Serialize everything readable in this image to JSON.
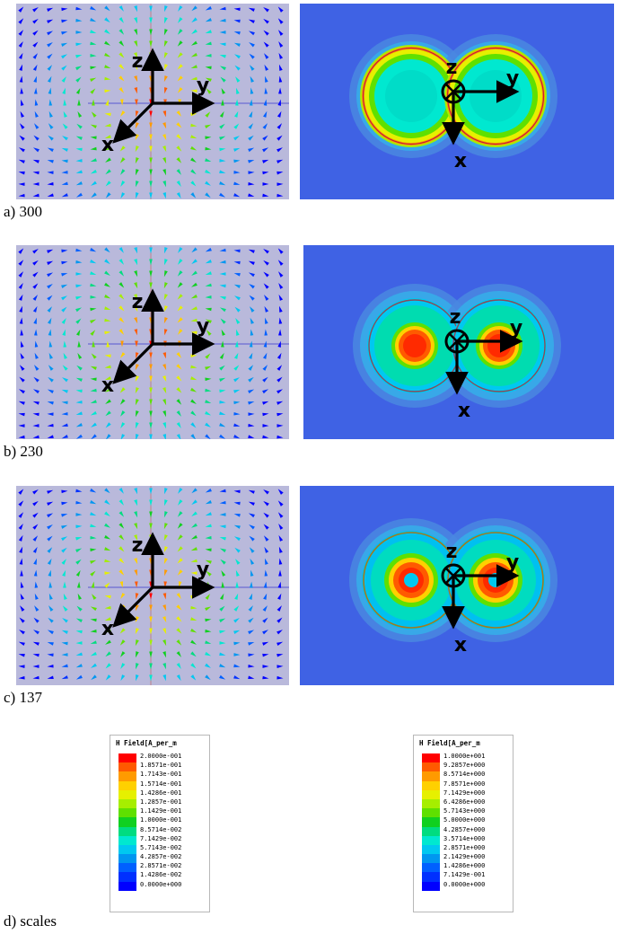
{
  "captions": {
    "a": "a) 300",
    "b": "b) 230",
    "c": "c) 137",
    "d": "d) scales"
  },
  "axes": {
    "x": "x",
    "y": "y",
    "z": "z"
  },
  "colors": {
    "left_background": "#b9b9db",
    "right_background": "#3f62e4",
    "axis_arrow": "#000000",
    "colormap": [
      "#ff0000",
      "#ff5a00",
      "#ff9a00",
      "#ffd000",
      "#e6f000",
      "#a6ee00",
      "#5fe000",
      "#10d020",
      "#00dc80",
      "#00e8d0",
      "#00c8f0",
      "#0096f0",
      "#0060ff",
      "#0030ff",
      "#0000ff"
    ]
  },
  "scales": {
    "left": {
      "title": "H Field[A_per_m",
      "labels": [
        "2.0000e-001",
        "1.8571e-001",
        "1.7143e-001",
        "1.5714e-001",
        "1.4286e-001",
        "1.2857e-001",
        "1.1429e-001",
        "1.0000e-001",
        "8.5714e-002",
        "7.1429e-002",
        "5.7143e-002",
        "4.2857e-002",
        "2.8571e-002",
        "1.4286e-002",
        "0.0000e+000"
      ]
    },
    "right": {
      "title": "H Field[A_per_m",
      "labels": [
        "1.0000e+001",
        "9.2857e+000",
        "8.5714e+000",
        "7.8571e+000",
        "7.1429e+000",
        "6.4286e+000",
        "5.7143e+000",
        "5.0000e+000",
        "4.2857e+000",
        "3.5714e+000",
        "2.8571e+000",
        "2.1429e+000",
        "1.4286e+000",
        "7.1429e-001",
        "0.0000e+000"
      ]
    }
  }
}
